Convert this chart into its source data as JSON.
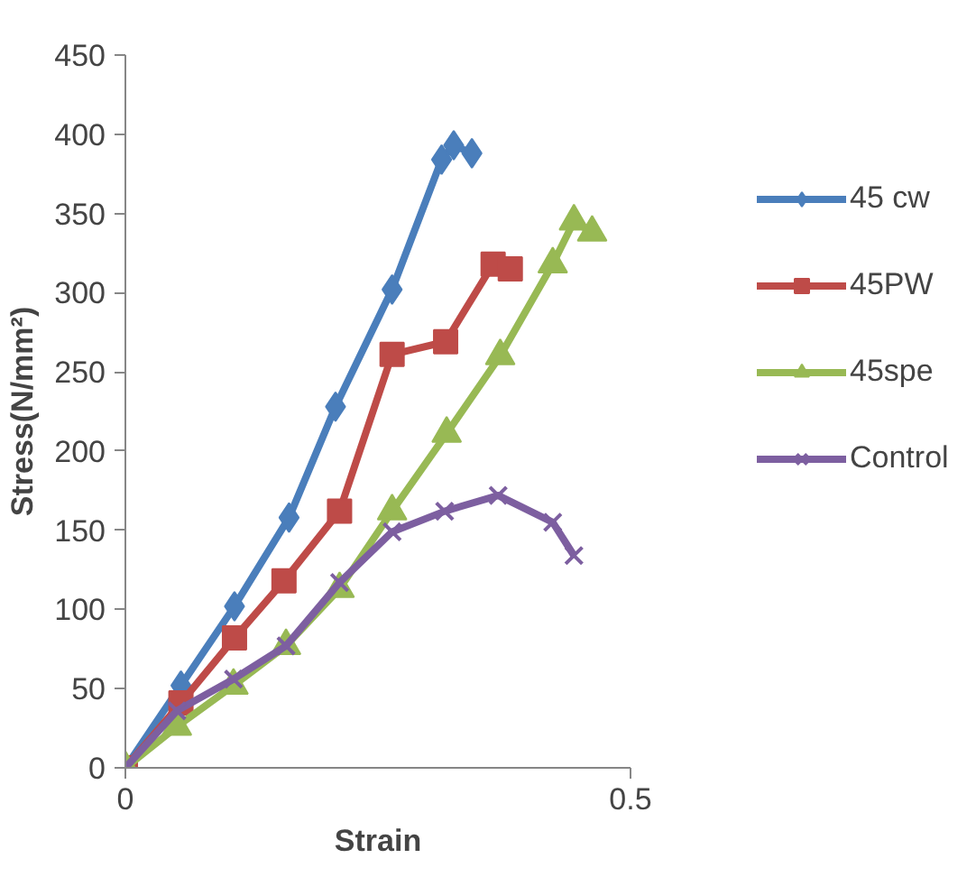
{
  "chart_data": {
    "type": "line",
    "xlabel": "Strain",
    "ylabel": "Stress(N/mm²)",
    "xlim": [
      0,
      0.5
    ],
    "ylim": [
      0,
      450
    ],
    "xticks": [
      0,
      0.5
    ],
    "yticks": [
      0,
      50,
      100,
      150,
      200,
      250,
      300,
      350,
      400,
      450
    ],
    "grid": false,
    "legend": "right",
    "line_style": "solid",
    "series": [
      {
        "name": "45 cw",
        "color": "#4a7ebb",
        "marker": "diamond",
        "x": [
          0,
          0.055,
          0.108,
          0.162,
          0.208,
          0.264,
          0.313,
          0.325,
          0.343
        ],
        "values": [
          0,
          52,
          102,
          158,
          228,
          302,
          384,
          393,
          388
        ]
      },
      {
        "name": "45PW",
        "color": "#be4b48",
        "marker": "square",
        "x": [
          0,
          0.055,
          0.108,
          0.157,
          0.212,
          0.264,
          0.317,
          0.364,
          0.381
        ],
        "values": [
          0,
          41,
          82,
          118,
          162,
          261,
          269,
          318,
          315
        ]
      },
      {
        "name": "45spe",
        "color": "#98b954",
        "marker": "triangle",
        "x": [
          0,
          0.051,
          0.107,
          0.159,
          0.212,
          0.264,
          0.318,
          0.371,
          0.423,
          0.444,
          0.462
        ],
        "values": [
          0,
          26,
          52,
          77,
          113,
          162,
          211,
          260,
          318,
          345,
          338
        ]
      },
      {
        "name": "Control",
        "color": "#7d5fa0",
        "marker": "cross",
        "x": [
          0,
          0.051,
          0.107,
          0.159,
          0.212,
          0.264,
          0.316,
          0.369,
          0.423,
          0.444
        ],
        "values": [
          0,
          36,
          56,
          77,
          117,
          149,
          162,
          172,
          155,
          134
        ]
      }
    ]
  }
}
